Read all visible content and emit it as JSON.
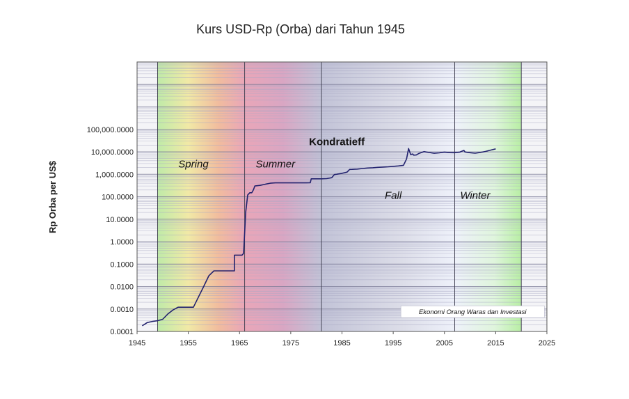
{
  "chart_data": {
    "type": "line",
    "title": "Kurs USD-Rp (Orba) dari Tahun 1945",
    "xlabel": "",
    "ylabel": "Rp Orba per US$",
    "y_scale": "log",
    "xlim": [
      1945,
      2025
    ],
    "ylim": [
      0.0001,
      100000000
    ],
    "x_ticks": [
      "1945",
      "1955",
      "1965",
      "1975",
      "1985",
      "1995",
      "2005",
      "2015",
      "2025"
    ],
    "y_ticks": [
      "0.0001",
      "0.0010",
      "0.0100",
      "0.1000",
      "1.0000",
      "10.0000",
      "100.0000",
      "1,000.0000",
      "10,000.0000",
      "100,000.0000"
    ],
    "grid": "minor-log",
    "season_dividers": [
      1949,
      1966,
      1981,
      2007,
      2020
    ],
    "season_colors": [
      "#bfeaa8",
      "#e9a6b8",
      "#c2c3d7",
      "#eef1fa",
      "#b8eea4"
    ],
    "annotations": [
      {
        "text": "Kondratieff",
        "x": 1984,
        "y": 20000
      },
      {
        "text": "Spring",
        "x": 1956,
        "y": 2000
      },
      {
        "text": "Summer",
        "x": 1972,
        "y": 2000
      },
      {
        "text": "Fall",
        "x": 1995,
        "y": 80
      },
      {
        "text": "Winter",
        "x": 2011,
        "y": 80
      }
    ],
    "source_label": "Ekonomi Orang Waras dan Investasi",
    "series": [
      {
        "color": "#22226e",
        "x": [
          1946,
          1947,
          1948,
          1949,
          1950,
          1951,
          1952,
          1953,
          1954,
          1955.5,
          1956,
          1957,
          1958,
          1959,
          1960,
          1961,
          1962,
          1963,
          1964,
          1964,
          1965.5,
          1965.8,
          1966.2,
          1966.6,
          1967,
          1967.4,
          1967.7,
          1968,
          1969,
          1970,
          1971,
          1972,
          1973,
          1974,
          1975,
          1976,
          1977,
          1978,
          1978.8,
          1979,
          1980,
          1981,
          1982,
          1983,
          1983.5,
          1984,
          1985,
          1986,
          1986.5,
          1987,
          1988,
          1989,
          1990,
          1991,
          1992,
          1993,
          1994,
          1995,
          1996,
          1997,
          1997.6,
          1998,
          1998.4,
          1998.8,
          1999,
          1999.5,
          2000,
          2001,
          2002,
          2003,
          2004,
          2005,
          2006,
          2007,
          2008,
          2008.8,
          2009,
          2009.5,
          2010,
          2011,
          2012,
          2013,
          2014,
          2015
        ],
        "y": [
          0.00018,
          0.00025,
          0.00028,
          0.0003,
          0.00035,
          0.0006,
          0.0009,
          0.0012,
          0.0012,
          0.0012,
          0.0012,
          0.0035,
          0.01,
          0.03,
          0.05,
          0.05,
          0.05,
          0.05,
          0.05,
          0.25,
          0.25,
          0.3,
          20,
          120,
          150,
          150,
          200,
          300,
          320,
          360,
          400,
          415,
          415,
          415,
          415,
          415,
          415,
          415,
          420,
          625,
          625,
          625,
          640,
          700,
          970,
          1000,
          1100,
          1250,
          1640,
          1650,
          1700,
          1800,
          1900,
          1950,
          2030,
          2090,
          2160,
          2250,
          2340,
          2500,
          4800,
          14000,
          7500,
          8000,
          7100,
          7200,
          8400,
          10200,
          9300,
          8600,
          9000,
          9700,
          9200,
          9100,
          9700,
          11500,
          9900,
          9400,
          9100,
          8700,
          9400,
          10400,
          11900,
          13500
        ]
      }
    ]
  }
}
